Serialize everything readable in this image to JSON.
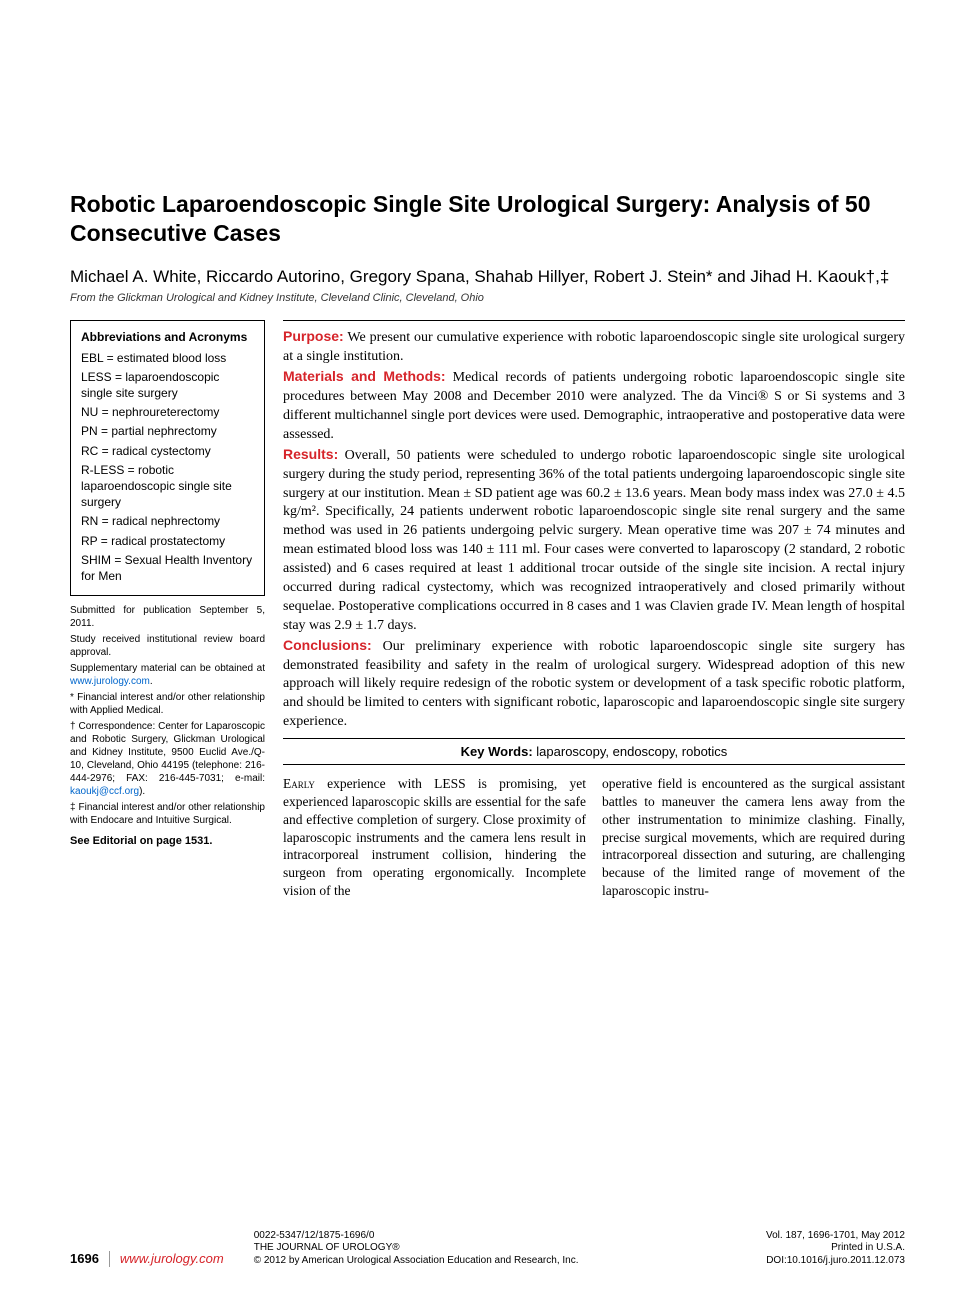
{
  "title": "Robotic Laparoendoscopic Single Site Urological Surgery: Analysis of 50 Consecutive Cases",
  "authors": "Michael A. White, Riccardo Autorino, Gregory Spana, Shahab Hillyer, Robert J. Stein* and Jihad H. Kaouk†,‡",
  "affiliation": "From the Glickman Urological and Kidney Institute, Cleveland Clinic, Cleveland, Ohio",
  "abbr": {
    "heading": "Abbreviations and Acronyms",
    "items": [
      "EBL = estimated blood loss",
      "LESS = laparoendoscopic single site surgery",
      "NU = nephroureterectomy",
      "PN = partial nephrectomy",
      "RC = radical cystectomy",
      "R-LESS = robotic laparoendoscopic single site surgery",
      "RN = radical nephrectomy",
      "RP = radical prostatectomy",
      "SHIM = Sexual Health Inventory for Men"
    ]
  },
  "notes": {
    "submitted": "Submitted for publication September 5, 2011.",
    "irb": "Study received institutional review board approval.",
    "supp_pre": "Supplementary material can be obtained at ",
    "supp_link": "www.jurology.com",
    "supp_post": ".",
    "star": "* Financial interest and/or other relationship with Applied Medical.",
    "dagger_pre": "† Correspondence: Center for Laparoscopic and Robotic Surgery, Glickman Urological and Kidney Institute, 9500 Euclid Ave./Q-10, Cleveland, Ohio 44195 (telephone: 216-444-2976; FAX: 216-445-7031; e-mail: ",
    "dagger_link": "kaoukj@ccf.org",
    "dagger_post": ").",
    "ddagger": "‡ Financial interest and/or other relationship with Endocare and Intuitive Surgical."
  },
  "editorial": "See Editorial on page 1531.",
  "abstract": {
    "purpose_label": "Purpose:",
    "purpose": " We present our cumulative experience with robotic laparoendoscopic single site urological surgery at a single institution.",
    "methods_label": "Materials and Methods:",
    "methods": " Medical records of patients undergoing robotic laparoendoscopic single site procedures between May 2008 and December 2010 were analyzed. The da Vinci® S or Si systems and 3 different multichannel single port devices were used. Demographic, intraoperative and postoperative data were assessed.",
    "results_label": "Results:",
    "results": " Overall, 50 patients were scheduled to undergo robotic laparoendoscopic single site urological surgery during the study period, representing 36% of the total patients undergoing laparoendoscopic single site surgery at our institution. Mean ± SD patient age was 60.2 ± 13.6 years. Mean body mass index was 27.0 ± 4.5 kg/m². Specifically, 24 patients underwent robotic laparoendoscopic single site renal surgery and the same method was used in 26 patients undergoing pelvic surgery. Mean operative time was 207 ± 74 minutes and mean estimated blood loss was 140 ± 111 ml. Four cases were converted to laparoscopy (2 standard, 2 robotic assisted) and 6 cases required at least 1 additional trocar outside of the single site incision. A rectal injury occurred during radical cystectomy, which was recognized intraoperatively and closed primarily without sequelae. Postoperative complications occurred in 8 cases and 1 was Clavien grade IV. Mean length of hospital stay was 2.9 ± 1.7 days.",
    "conclusions_label": "Conclusions:",
    "conclusions": " Our preliminary experience with robotic laparoendoscopic single site surgery has demonstrated feasibility and safety in the realm of urological surgery. Widespread adoption of this new approach will likely require redesign of the robotic system or development of a task specific robotic platform, and should be limited to centers with significant robotic, laparoscopic and laparoendoscopic single site surgery experience."
  },
  "keywords": {
    "label": "Key Words:",
    "text": " laparoscopy, endoscopy, robotics"
  },
  "body": {
    "col1_lead": "Early",
    "col1": " experience with LESS is promising, yet experienced laparoscopic skills are essential for the safe and effective completion of surgery. Close proximity of laparoscopic instruments and the camera lens result in intracorporeal instrument collision, hindering the surgeon from operating ergonomically. Incomplete vision of the",
    "col2": "operative field is encountered as the surgical assistant battles to maneuver the camera lens away from the other instrumentation to minimize clashing. Finally, precise surgical movements, which are required during intracorporeal dissection and suturing, are challenging because of the limited range of movement of the laparoscopic instru-"
  },
  "footer": {
    "page": "1696",
    "site": "www.jurology.com",
    "issn": "0022-5347/12/1875-1696/0",
    "journal": "THE JOURNAL OF UROLOGY®",
    "copyright": "© 2012 by American Urological Association Education and Research, Inc.",
    "vol": "Vol. 187, 1696-1701, May 2012",
    "printed": "Printed in U.S.A.",
    "doi": "DOI:10.1016/j.juro.2011.12.073"
  },
  "colors": {
    "accent": "#d6242a",
    "link": "#0066cc",
    "text": "#000000",
    "background": "#ffffff"
  }
}
